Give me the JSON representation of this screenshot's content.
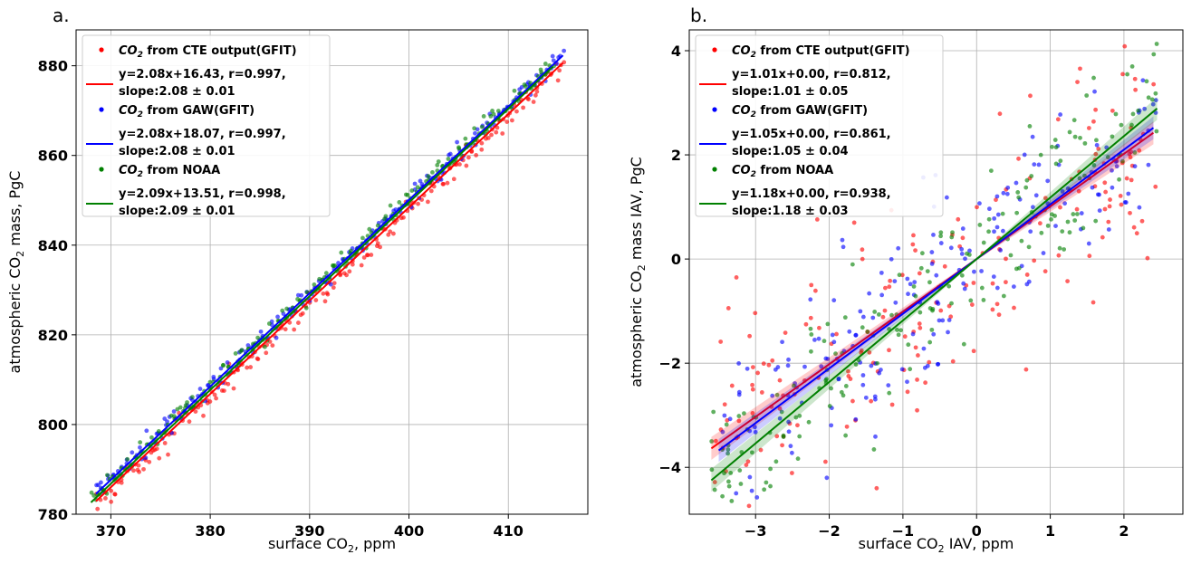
{
  "chart_data": [
    {
      "panel_label": "a.",
      "type": "scatter",
      "xlabel": "surface CO",
      "xlabel_sub": "2",
      "xlabel_suffix": ", ppm",
      "ylabel": "atmospheric CO",
      "ylabel_sub": "2",
      "ylabel_suffix": " mass, PgC",
      "xlim": [
        366.5,
        418
      ],
      "ylim": [
        780,
        888
      ],
      "xticks": [
        370,
        380,
        390,
        400,
        410
      ],
      "yticks": [
        780,
        800,
        820,
        840,
        860,
        880
      ],
      "grid": true,
      "legend_position": "upper-left",
      "series": [
        {
          "name": "CO2 from CTE output(GFIT)",
          "legend_label": "from CTE output(GFIT)",
          "color": "#ff0000",
          "fit_label": "y=2.08x+16.43, r=0.997,",
          "slope_label": "slope:2.08 ± 0.01",
          "slope": 2.08,
          "intercept": 16.43,
          "fit_x": [
            368.5,
            415.5
          ],
          "x_range": [
            368.5,
            415.5
          ],
          "offset": -0.8,
          "spread": 1.3
        },
        {
          "name": "CO2 from GAW(GFIT)",
          "legend_label": "from GAW(GFIT)",
          "color": "#0000ff",
          "fit_label": "y=2.08x+18.07, r=0.997,",
          "slope_label": "slope:2.08 ± 0.01",
          "slope": 2.08,
          "intercept": 18.07,
          "fit_x": [
            368.5,
            415.5
          ],
          "x_range": [
            368.5,
            415.5
          ],
          "offset": 0.0,
          "spread": 1.2
        },
        {
          "name": "CO2 from NOAA",
          "legend_label": "from NOAA",
          "color": "#008000",
          "fit_label": "y=2.09x+13.51, r=0.998,",
          "slope_label": "slope:2.09 ± 0.01",
          "slope": 2.09,
          "intercept": 13.51,
          "fit_x": [
            368.0,
            414.5
          ],
          "x_range": [
            368.0,
            414.5
          ],
          "offset": 0.8,
          "spread": 1.0
        }
      ]
    },
    {
      "panel_label": "b.",
      "type": "scatter",
      "xlabel": "surface CO",
      "xlabel_sub": "2",
      "xlabel_suffix": " IAV, ppm",
      "ylabel": "atmospheric CO",
      "ylabel_sub": "2",
      "ylabel_suffix": " mass IAV, PgC",
      "xlim": [
        -3.9,
        2.8
      ],
      "ylim": [
        -4.9,
        4.4
      ],
      "xticks": [
        -3,
        -2,
        -1,
        0,
        1,
        2
      ],
      "yticks": [
        -4,
        -2,
        0,
        2,
        4
      ],
      "grid": true,
      "legend_position": "upper-left",
      "series": [
        {
          "name": "CO2 from CTE output(GFIT)",
          "legend_label": "from CTE output(GFIT)",
          "color": "#ff0000",
          "fit_label": "y=1.01x+0.00, r=0.812,",
          "slope_label": "slope:1.01 ± 0.05",
          "slope": 1.01,
          "intercept": 0.0,
          "fit_x": [
            -3.6,
            2.4
          ],
          "x_range": [
            -3.6,
            2.45
          ],
          "noise": 1.1
        },
        {
          "name": "CO2 from GAW(GFIT)",
          "legend_label": "from GAW(GFIT)",
          "color": "#0000ff",
          "fit_label": "y=1.05x+0.00, r=0.861,",
          "slope_label": "slope:1.05 ± 0.04",
          "slope": 1.05,
          "intercept": 0.0,
          "fit_x": [
            -3.5,
            2.4
          ],
          "x_range": [
            -3.5,
            2.45
          ],
          "noise": 0.95
        },
        {
          "name": "CO2 from NOAA",
          "legend_label": "from NOAA",
          "color": "#008000",
          "fit_label": "y=1.18x+0.00, r=0.938,",
          "slope_label": "slope:1.18 ± 0.03",
          "slope": 1.18,
          "intercept": 0.0,
          "fit_x": [
            -3.6,
            2.45
          ],
          "x_range": [
            -3.6,
            2.45
          ],
          "noise": 0.75
        }
      ]
    }
  ]
}
